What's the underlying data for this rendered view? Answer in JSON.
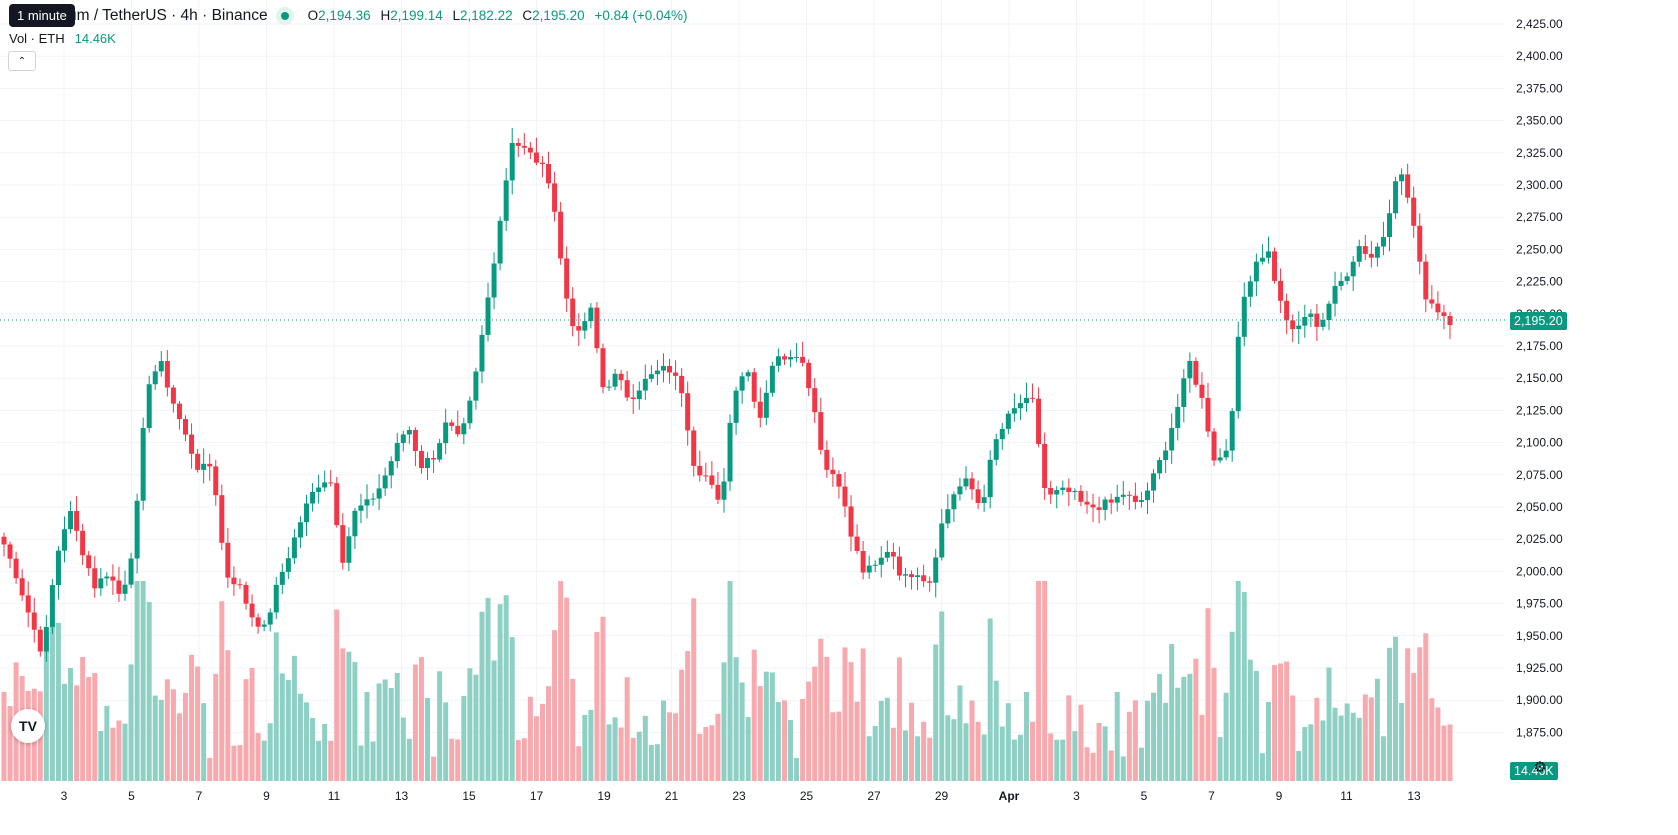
{
  "legend": {
    "title": "um / TetherUS · 4h · Binance",
    "ohlc": [
      {
        "k": "O",
        "v": "2,194.36"
      },
      {
        "k": "H",
        "v": "2,199.14"
      },
      {
        "k": "L",
        "v": "2,182.22"
      },
      {
        "k": "C",
        "v": "2,195.20"
      },
      {
        "k": "",
        "v": "+0.84 (+0.04%)"
      }
    ],
    "tooltip": "1 minute",
    "vol_label": "Vol · ETH",
    "vol_value": "14.46K"
  },
  "badges": {
    "last_price": "2,195.20",
    "last_volume": "14.46K"
  },
  "icons": {
    "collapse": "chevron-up-icon",
    "logo": "tradingview-logo",
    "settings": "gear-icon"
  },
  "colors": {
    "up": "#089981",
    "down": "#f23645",
    "vol_up": "#8fd0c5",
    "vol_down": "#f7a9ae",
    "grid": "#f0f3fa"
  },
  "chart_data": {
    "type": "candlestick",
    "symbol": "um / TetherUS",
    "interval": "4h",
    "exchange": "Binance",
    "y_ticks": [
      "2,425.00",
      "2,400.00",
      "2,375.00",
      "2,350.00",
      "2,325.00",
      "2,300.00",
      "2,275.00",
      "2,250.00",
      "2,225.00",
      "2,200.00",
      "2,175.00",
      "2,150.00",
      "2,125.00",
      "2,100.00",
      "2,075.00",
      "2,050.00",
      "2,025.00",
      "2,000.00",
      "1,975.00",
      "1,950.00",
      "1,925.00",
      "1,900.00",
      "1,875.00"
    ],
    "x_ticks": [
      "3",
      "5",
      "7",
      "9",
      "11",
      "13",
      "15",
      "17",
      "19",
      "21",
      "23",
      "25",
      "27",
      "29",
      "Apr",
      "3",
      "5",
      "7",
      "9",
      "11",
      "13"
    ],
    "last_price": 2195.2,
    "candle_keypoints": [
      2021,
      1996,
      1964,
      1935,
      2010,
      2048,
      2017,
      1988,
      2000,
      1979,
      2025,
      2146,
      2162,
      2131,
      2103,
      2078,
      2083,
      1998,
      1990,
      1966,
      1955,
      1990,
      2017,
      2046,
      2067,
      2074,
      2010,
      2048,
      2053,
      2068,
      2093,
      2114,
      2082,
      2090,
      2116,
      2100,
      2139,
      2202,
      2268,
      2335,
      2327,
      2318,
      2302,
      2220,
      2180,
      2205,
      2142,
      2152,
      2134,
      2146,
      2154,
      2158,
      2142,
      2082,
      2073,
      2048,
      2140,
      2160,
      2118,
      2162,
      2168,
      2171,
      2138,
      2080,
      2074,
      2028,
      1999,
      2004,
      2020,
      1993,
      2002,
      1990,
      2037,
      2063,
      2070,
      2049,
      2098,
      2118,
      2131,
      2131,
      2056,
      2062,
      2061,
      2049,
      2051,
      2053,
      2061,
      2050,
      2067,
      2092,
      2124,
      2163,
      2132,
      2083,
      2098,
      2206,
      2240,
      2250,
      2208,
      2183,
      2201,
      2190,
      2216,
      2230,
      2253,
      2244,
      2263,
      2316,
      2282,
      2216,
      2204,
      2195
    ]
  }
}
